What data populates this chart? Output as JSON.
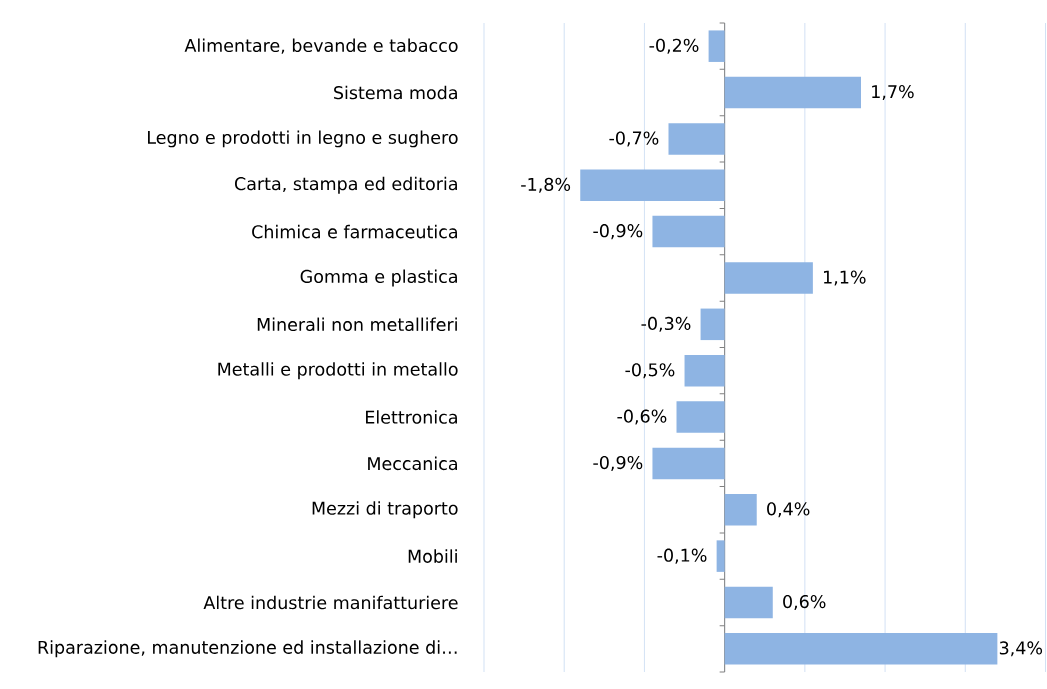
{
  "chart_data": {
    "type": "bar",
    "orientation": "horizontal",
    "categories": [
      "Alimentare, bevande e tabacco",
      "Sistema moda",
      "Legno e prodotti in legno e sughero",
      "Carta, stampa ed editoria",
      "Chimica e farmaceutica",
      "Gomma e plastica",
      "Minerali non metalliferi",
      "Metalli e prodotti in metallo",
      "Elettronica",
      "Meccanica",
      "Mezzi di traporto",
      "Mobili",
      "Altre industrie manifatturiere",
      "Riparazione, manutenzione ed installazione di…"
    ],
    "values": [
      -0.2,
      1.7,
      -0.7,
      -1.8,
      -0.9,
      1.1,
      -0.3,
      -0.5,
      -0.6,
      -0.9,
      0.4,
      -0.1,
      0.6,
      3.4
    ],
    "value_labels": [
      "-0,2%",
      "1,7%",
      "-0,7%",
      "-1,8%",
      "-0,9%",
      "1,1%",
      "-0,3%",
      "-0,5%",
      "-0,6%",
      "-0,9%",
      "0,4%",
      "-0,1%",
      "0,6%",
      "3,4%"
    ],
    "color": "#8eb4e3",
    "xlim": [
      -3,
      4
    ],
    "xticks": [
      {
        "value": -3,
        "label": null
      },
      {
        "value": -2,
        "label": null
      },
      {
        "value": -1,
        "label": null
      },
      {
        "value": 0,
        "label": null
      },
      {
        "value": 1,
        "label": null
      },
      {
        "value": 2,
        "label": null
      },
      {
        "value": 3,
        "label": null
      },
      {
        "value": 4,
        "label": null
      }
    ],
    "grid": "x",
    "tick_labels": "y"
  }
}
